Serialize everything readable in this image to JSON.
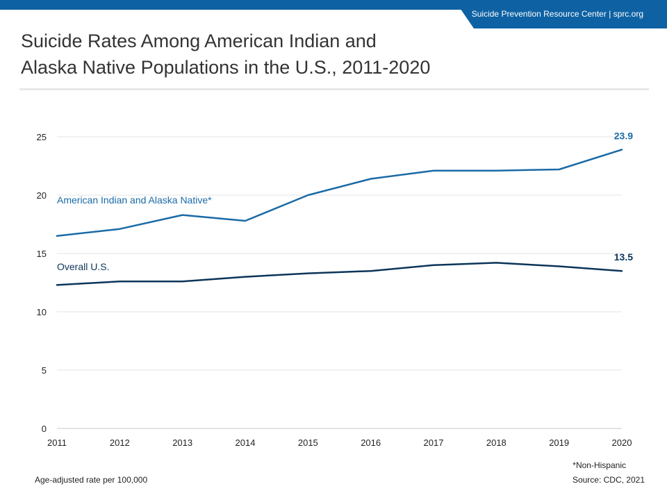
{
  "header": {
    "brand": "Suicide Prevention Resource Center  |  sprc.org",
    "title_line1": "Suicide Rates Among American Indian and",
    "title_line2": "Alaska Native Populations in the U.S., 2011-2020"
  },
  "colors": {
    "brand": "#0e62a3",
    "aian_series": "#1a6aa6",
    "overall_series": "#0b3559",
    "grid": "#e3e3e3"
  },
  "chart_data": {
    "type": "line",
    "title": "Suicide Rates Among American Indian and Alaska Native Populations in the U.S., 2011-2020",
    "x": [
      2011,
      2012,
      2013,
      2014,
      2015,
      2016,
      2017,
      2018,
      2019,
      2020
    ],
    "xlabel": "",
    "ylabel": "",
    "ylim": [
      0,
      25
    ],
    "yticks": [
      0,
      5,
      10,
      15,
      20,
      25
    ],
    "grid": true,
    "series": [
      {
        "name": "American Indian and Alaska Native*",
        "values": [
          16.5,
          17.1,
          18.3,
          17.8,
          20.0,
          21.4,
          22.1,
          22.1,
          22.2,
          23.9
        ],
        "end_label": "23.9",
        "color": "#1a6aa6"
      },
      {
        "name": "Overall U.S.",
        "values": [
          12.3,
          12.6,
          12.6,
          13.0,
          13.3,
          13.5,
          14.0,
          14.2,
          13.9,
          13.5
        ],
        "end_label": "13.5",
        "color": "#0b3559"
      }
    ]
  },
  "footer": {
    "note": "*Non-Hispanic",
    "units": "Age-adjusted rate per 100,000",
    "source": "Source: CDC, 2021"
  }
}
